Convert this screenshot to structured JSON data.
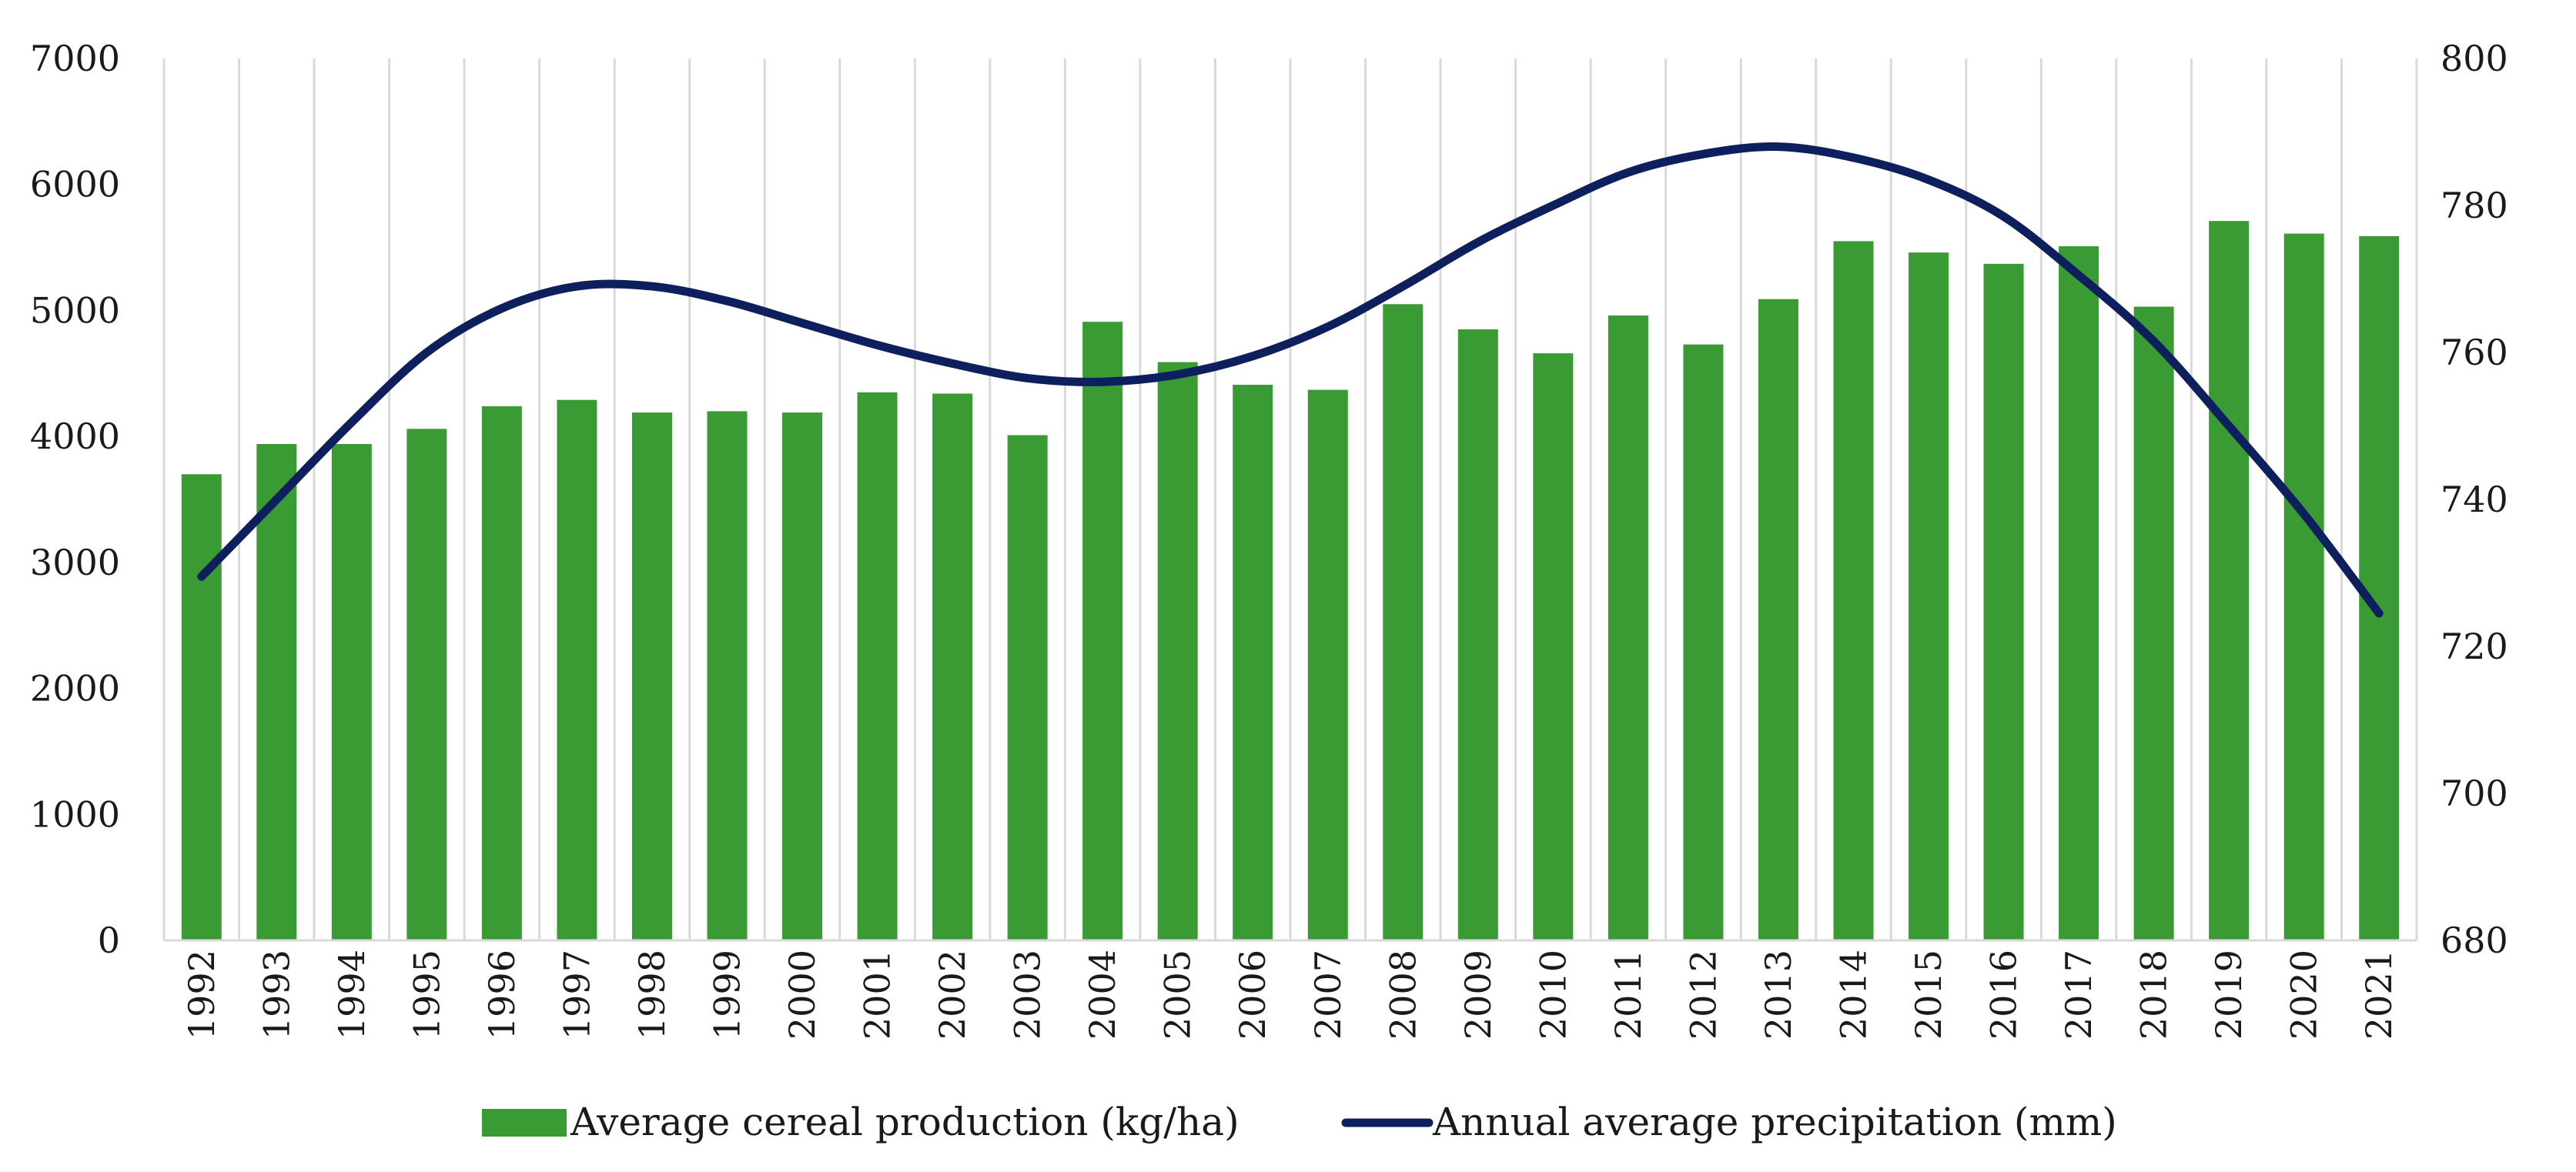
{
  "chart_data": {
    "type": "bar+line",
    "title": "",
    "categories": [
      "1992",
      "1993",
      "1994",
      "1995",
      "1996",
      "1997",
      "1998",
      "1999",
      "2000",
      "2001",
      "2002",
      "2003",
      "2004",
      "2005",
      "2006",
      "2007",
      "2008",
      "2009",
      "2010",
      "2011",
      "2012",
      "2013",
      "2014",
      "2015",
      "2016",
      "2017",
      "2018",
      "2019",
      "2020",
      "2021"
    ],
    "series": [
      {
        "name": "Average cereal production (kg/ha)",
        "kind": "bar",
        "axis": "left",
        "color": "#3a9b35",
        "values": [
          3700,
          3940,
          3940,
          4060,
          4240,
          4290,
          4190,
          4200,
          4190,
          4350,
          4340,
          4010,
          4910,
          4590,
          4410,
          4370,
          5050,
          4850,
          4660,
          4960,
          4730,
          5090,
          5550,
          5460,
          5370,
          5510,
          5030,
          5710,
          5610,
          5590
        ]
      },
      {
        "name": "Annual average precipitation (mm)",
        "kind": "line",
        "axis": "right",
        "color": "#0d1f5c",
        "values": [
          729.5,
          740,
          750.5,
          760,
          766,
          769,
          769,
          767,
          764,
          761,
          758.5,
          756.5,
          756,
          757,
          759.5,
          763.5,
          769,
          775,
          780,
          784.5,
          787,
          788,
          786.5,
          783.5,
          778.5,
          770.5,
          761.5,
          750,
          738,
          724.5
        ]
      }
    ],
    "y_left": {
      "min": 0,
      "max": 7000,
      "ticks": [
        0,
        1000,
        2000,
        3000,
        4000,
        5000,
        6000,
        7000
      ]
    },
    "y_right": {
      "min": 680,
      "max": 800,
      "ticks": [
        680,
        700,
        720,
        740,
        760,
        780,
        800
      ]
    },
    "grid": "vertical",
    "legend_position": "bottom"
  }
}
